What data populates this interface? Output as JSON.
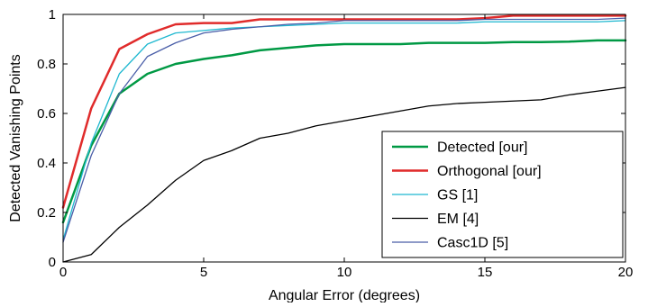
{
  "chart_data": {
    "type": "line",
    "title": "",
    "xlabel": "Angular Error (degrees)",
    "ylabel": "Detected Vanishing Points",
    "xlim": [
      0,
      20
    ],
    "ylim": [
      0,
      1
    ],
    "xticks": [
      0,
      5,
      10,
      15,
      20
    ],
    "xtick_labels": [
      "0",
      "5",
      "10",
      "15",
      "20"
    ],
    "yticks": [
      0,
      0.2,
      0.4,
      0.6,
      0.8,
      1
    ],
    "ytick_labels": [
      "0",
      "0.2",
      "0.4",
      "0.6",
      "0.8",
      "1"
    ],
    "grid": false,
    "legend_position": "bottom-right",
    "x": [
      0,
      1,
      2,
      3,
      4,
      5,
      6,
      7,
      8,
      9,
      10,
      11,
      12,
      13,
      14,
      15,
      16,
      17,
      18,
      19,
      20
    ],
    "series": [
      {
        "name": "Detected [our]",
        "color": "#009944",
        "width": 2.5,
        "values": [
          0.16,
          0.47,
          0.68,
          0.76,
          0.8,
          0.82,
          0.835,
          0.855,
          0.865,
          0.875,
          0.88,
          0.88,
          0.88,
          0.885,
          0.885,
          0.885,
          0.888,
          0.888,
          0.89,
          0.895,
          0.895
        ]
      },
      {
        "name": "Orthogonal [our]",
        "color": "#e02b2b",
        "width": 2.5,
        "values": [
          0.22,
          0.62,
          0.86,
          0.92,
          0.96,
          0.965,
          0.965,
          0.98,
          0.98,
          0.98,
          0.98,
          0.98,
          0.98,
          0.98,
          0.98,
          0.985,
          0.995,
          0.995,
          0.995,
          0.995,
          0.995
        ]
      },
      {
        "name": "GS [1]",
        "color": "#1fb8d0",
        "width": 1.3,
        "values": [
          0.09,
          0.48,
          0.76,
          0.88,
          0.925,
          0.935,
          0.945,
          0.95,
          0.955,
          0.96,
          0.965,
          0.965,
          0.965,
          0.965,
          0.965,
          0.97,
          0.97,
          0.97,
          0.97,
          0.97,
          0.975
        ]
      },
      {
        "name": "EM [4]",
        "color": "#000000",
        "width": 1.3,
        "values": [
          0.0,
          0.03,
          0.14,
          0.23,
          0.33,
          0.41,
          0.45,
          0.5,
          0.52,
          0.55,
          0.57,
          0.59,
          0.61,
          0.63,
          0.64,
          0.645,
          0.65,
          0.655,
          0.675,
          0.69,
          0.705
        ]
      },
      {
        "name": "Casc1D [5]",
        "color": "#4a5ea8",
        "width": 1.3,
        "values": [
          0.08,
          0.43,
          0.68,
          0.83,
          0.885,
          0.925,
          0.94,
          0.95,
          0.96,
          0.965,
          0.975,
          0.975,
          0.975,
          0.975,
          0.975,
          0.98,
          0.98,
          0.98,
          0.98,
          0.98,
          0.985
        ]
      }
    ]
  }
}
